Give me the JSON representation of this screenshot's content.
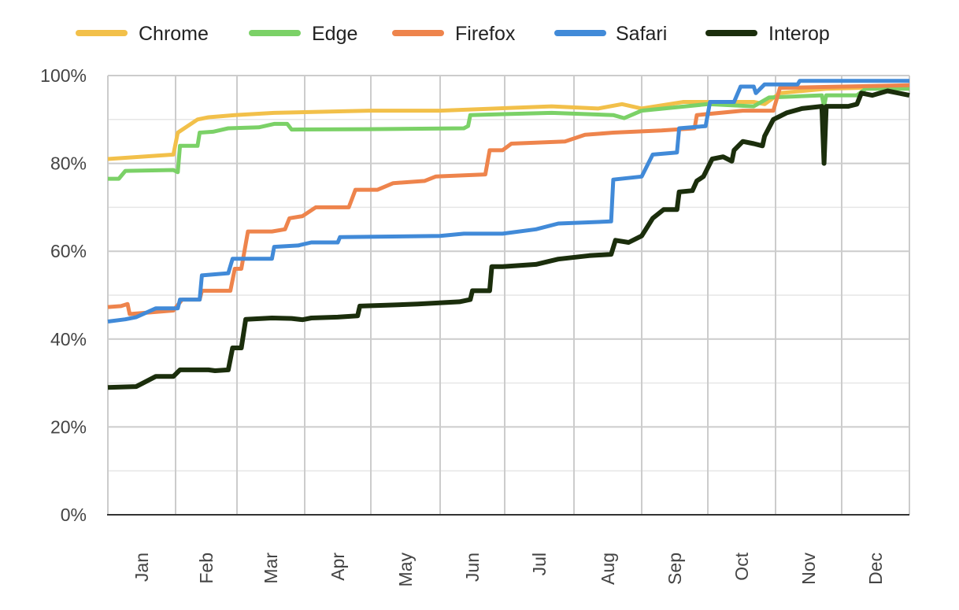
{
  "chart_data": {
    "type": "line",
    "title": "",
    "xlabel": "",
    "ylabel": "",
    "ylim": [
      0,
      100
    ],
    "y_ticks": [
      "0%",
      "20%",
      "40%",
      "60%",
      "80%",
      "100%"
    ],
    "x_ticks": [
      "Jan",
      "Feb",
      "Mar",
      "Apr",
      "May",
      "Jun",
      "Jul",
      "Aug",
      "Sep",
      "Oct",
      "Nov",
      "Dec"
    ],
    "grid": true,
    "legend_position": "top",
    "series": [
      {
        "name": "Chrome",
        "color": "#f2c04a",
        "points": [
          [
            "01-01",
            81
          ],
          [
            "01-31",
            82
          ],
          [
            "02-02",
            87
          ],
          [
            "02-11",
            90
          ],
          [
            "02-16",
            90.5
          ],
          [
            "02-28",
            91
          ],
          [
            "03-18",
            91.5
          ],
          [
            "04-30",
            92
          ],
          [
            "06-01",
            92
          ],
          [
            "07-22",
            93
          ],
          [
            "08-12",
            92.5
          ],
          [
            "08-23",
            93.5
          ],
          [
            "09-01",
            92.5
          ],
          [
            "09-20",
            94
          ],
          [
            "10-01",
            94
          ],
          [
            "10-22",
            94
          ],
          [
            "10-27",
            93.5
          ],
          [
            "11-03",
            96
          ],
          [
            "11-24",
            97
          ],
          [
            "12-31",
            97.5
          ]
        ]
      },
      {
        "name": "Edge",
        "color": "#7bd167",
        "points": [
          [
            "01-01",
            76.5
          ],
          [
            "01-06",
            76.5
          ],
          [
            "01-09",
            78.3
          ],
          [
            "01-31",
            78.5
          ],
          [
            "02-02",
            78
          ],
          [
            "02-03",
            84
          ],
          [
            "02-11",
            84
          ],
          [
            "02-12",
            87
          ],
          [
            "02-18",
            87.2
          ],
          [
            "02-25",
            88
          ],
          [
            "03-11",
            88.2
          ],
          [
            "03-18",
            89
          ],
          [
            "03-24",
            89
          ],
          [
            "03-26",
            87.7
          ],
          [
            "04-30",
            87.8
          ],
          [
            "06-12",
            88
          ],
          [
            "06-14",
            88.5
          ],
          [
            "06-15",
            91
          ],
          [
            "07-22",
            91.5
          ],
          [
            "08-19",
            91
          ],
          [
            "08-24",
            90.3
          ],
          [
            "09-01",
            92
          ],
          [
            "10-01",
            93.5
          ],
          [
            "10-22",
            93
          ],
          [
            "10-29",
            95
          ],
          [
            "11-22",
            95.5
          ],
          [
            "11-23",
            93
          ],
          [
            "11-24",
            95.5
          ],
          [
            "12-08",
            95.5
          ],
          [
            "12-12",
            97
          ],
          [
            "12-31",
            97
          ]
        ]
      },
      {
        "name": "Firefox",
        "color": "#ee844c",
        "points": [
          [
            "01-01",
            47.3
          ],
          [
            "01-07",
            47.5
          ],
          [
            "01-10",
            48
          ],
          [
            "01-11",
            45.7
          ],
          [
            "01-31",
            46.5
          ],
          [
            "02-04",
            49
          ],
          [
            "02-12",
            49
          ],
          [
            "02-13",
            51
          ],
          [
            "02-26",
            51
          ],
          [
            "02-28",
            56
          ],
          [
            "03-03",
            56
          ],
          [
            "03-06",
            64.5
          ],
          [
            "03-17",
            64.5
          ],
          [
            "03-23",
            65
          ],
          [
            "03-25",
            67.5
          ],
          [
            "03-31",
            68
          ],
          [
            "04-06",
            70
          ],
          [
            "04-21",
            70
          ],
          [
            "04-24",
            74
          ],
          [
            "05-04",
            74
          ],
          [
            "05-11",
            75.5
          ],
          [
            "05-25",
            76
          ],
          [
            "05-30",
            77
          ],
          [
            "06-22",
            77.5
          ],
          [
            "06-24",
            83
          ],
          [
            "06-30",
            83
          ],
          [
            "07-04",
            84.5
          ],
          [
            "07-28",
            85
          ],
          [
            "08-06",
            86.5
          ],
          [
            "08-19",
            87
          ],
          [
            "09-10",
            87.5
          ],
          [
            "09-25",
            88
          ],
          [
            "09-26",
            91
          ],
          [
            "10-17",
            92
          ],
          [
            "10-31",
            92
          ],
          [
            "11-03",
            97.2
          ],
          [
            "12-31",
            97.8
          ]
        ]
      },
      {
        "name": "Safari",
        "color": "#418ad8",
        "points": [
          [
            "01-01",
            44
          ],
          [
            "01-09",
            44.5
          ],
          [
            "01-14",
            45
          ],
          [
            "01-23",
            47
          ],
          [
            "02-02",
            47
          ],
          [
            "02-03",
            49
          ],
          [
            "02-12",
            49
          ],
          [
            "02-13",
            54.5
          ],
          [
            "02-25",
            55
          ],
          [
            "02-27",
            58.3
          ],
          [
            "03-17",
            58.3
          ],
          [
            "03-18",
            61
          ],
          [
            "03-29",
            61.3
          ],
          [
            "04-04",
            62
          ],
          [
            "04-16",
            62
          ],
          [
            "04-17",
            63.2
          ],
          [
            "06-01",
            63.5
          ],
          [
            "06-12",
            64
          ],
          [
            "06-30",
            64
          ],
          [
            "07-15",
            65
          ],
          [
            "07-25",
            66.3
          ],
          [
            "08-18",
            66.8
          ],
          [
            "08-19",
            76.3
          ],
          [
            "09-01",
            77
          ],
          [
            "09-06",
            82
          ],
          [
            "09-17",
            82.5
          ],
          [
            "09-18",
            88
          ],
          [
            "09-30",
            88.5
          ],
          [
            "10-02",
            94
          ],
          [
            "10-13",
            94
          ],
          [
            "10-16",
            97.5
          ],
          [
            "10-22",
            97.5
          ],
          [
            "10-23",
            96
          ],
          [
            "10-27",
            98
          ],
          [
            "11-11",
            98
          ],
          [
            "11-12",
            98.8
          ],
          [
            "12-31",
            98.8
          ]
        ]
      },
      {
        "name": "Interop",
        "color": "#1b2e0c",
        "points": [
          [
            "01-01",
            29
          ],
          [
            "01-14",
            29.2
          ],
          [
            "01-23",
            31.5
          ],
          [
            "01-31",
            31.5
          ],
          [
            "02-03",
            33
          ],
          [
            "02-16",
            33
          ],
          [
            "02-19",
            32.8
          ],
          [
            "02-25",
            33
          ],
          [
            "02-27",
            38
          ],
          [
            "03-03",
            38
          ],
          [
            "03-05",
            44.5
          ],
          [
            "03-17",
            44.8
          ],
          [
            "03-26",
            44.7
          ],
          [
            "03-31",
            44.4
          ],
          [
            "04-04",
            44.8
          ],
          [
            "04-16",
            45
          ],
          [
            "04-25",
            45.3
          ],
          [
            "04-26",
            47.5
          ],
          [
            "05-08",
            47.7
          ],
          [
            "05-22",
            48
          ],
          [
            "06-10",
            48.5
          ],
          [
            "06-15",
            49
          ],
          [
            "06-16",
            51
          ],
          [
            "06-24",
            51
          ],
          [
            "06-25",
            56.5
          ],
          [
            "06-30",
            56.5
          ],
          [
            "07-15",
            57
          ],
          [
            "07-25",
            58.2
          ],
          [
            "08-08",
            59
          ],
          [
            "08-18",
            59.3
          ],
          [
            "08-20",
            62.5
          ],
          [
            "08-26",
            62
          ],
          [
            "09-01",
            63.5
          ],
          [
            "09-06",
            67.5
          ],
          [
            "09-11",
            69.5
          ],
          [
            "09-17",
            69.5
          ],
          [
            "09-18",
            73.5
          ],
          [
            "09-24",
            73.8
          ],
          [
            "09-26",
            76
          ],
          [
            "09-29",
            77
          ],
          [
            "10-03",
            81
          ],
          [
            "10-08",
            81.5
          ],
          [
            "10-12",
            80.5
          ],
          [
            "10-13",
            83
          ],
          [
            "10-17",
            85
          ],
          [
            "10-22",
            84.5
          ],
          [
            "10-26",
            84
          ],
          [
            "10-27",
            86.2
          ],
          [
            "10-31",
            90
          ],
          [
            "11-06",
            91.5
          ],
          [
            "11-13",
            92.5
          ],
          [
            "11-22",
            93
          ],
          [
            "11-23",
            80
          ],
          [
            "11-24",
            93
          ],
          [
            "12-04",
            93
          ],
          [
            "12-08",
            93.5
          ],
          [
            "12-10",
            96
          ],
          [
            "12-15",
            95.5
          ],
          [
            "12-22",
            96.5
          ],
          [
            "12-31",
            95.5
          ]
        ]
      }
    ]
  }
}
